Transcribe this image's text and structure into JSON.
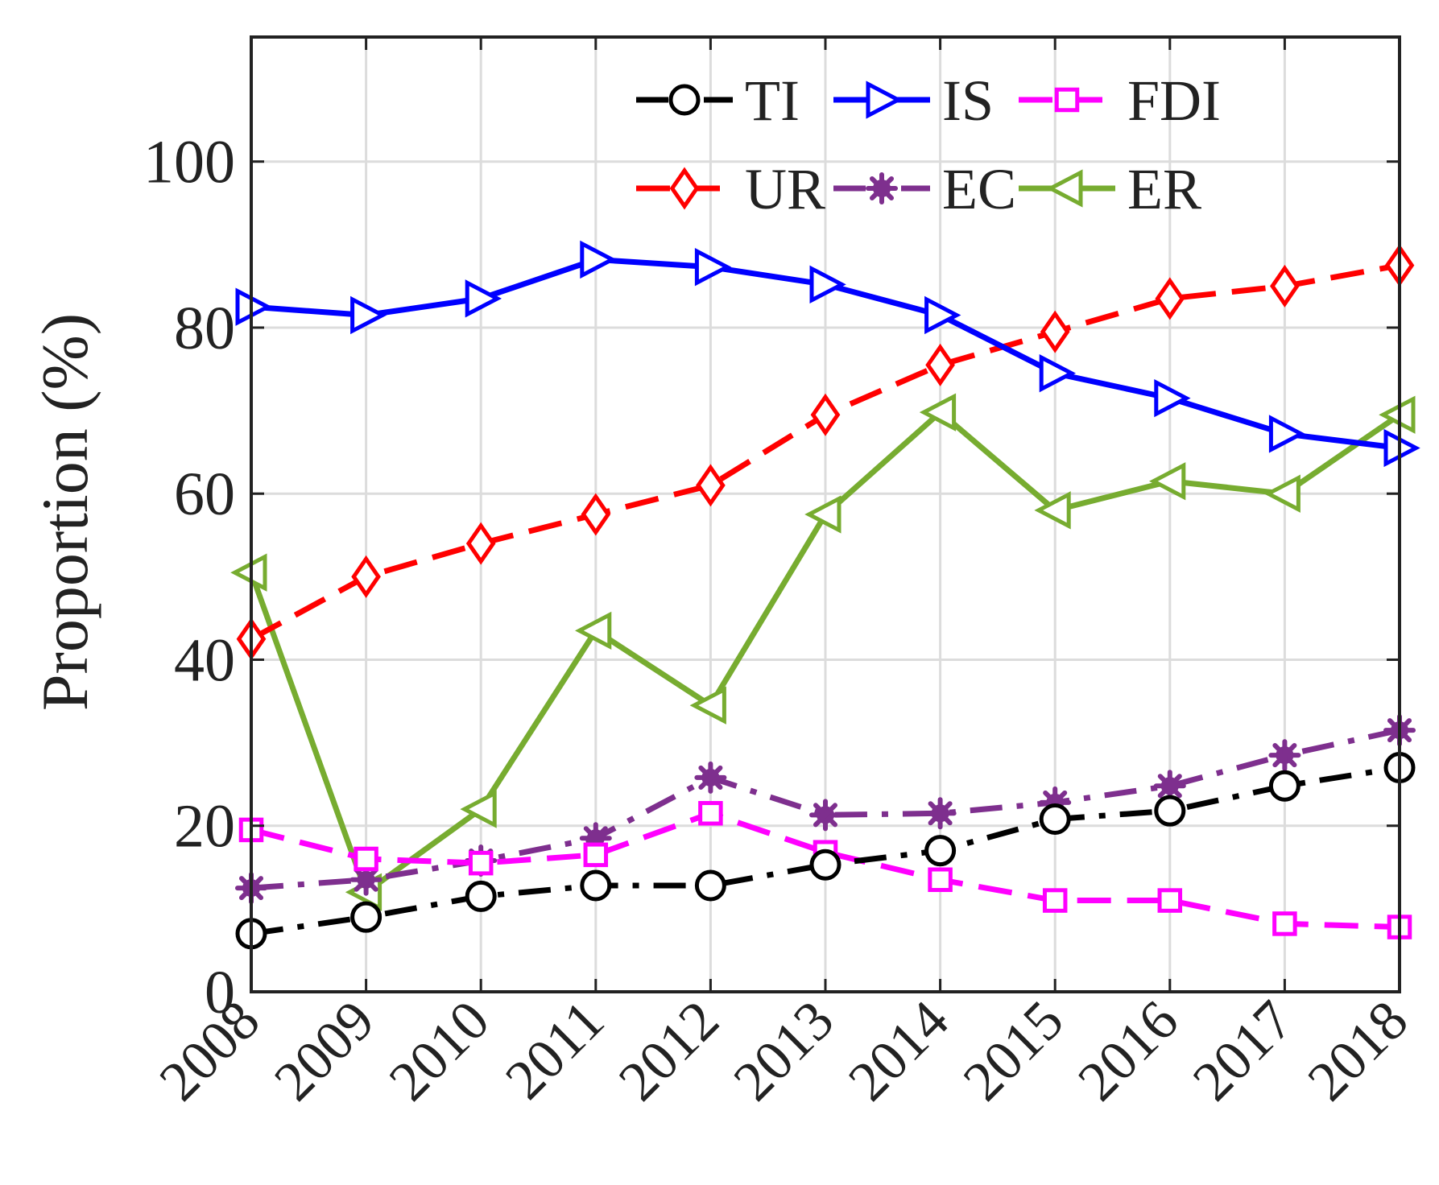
{
  "chart_data": {
    "type": "line",
    "title": "",
    "xlabel": "",
    "ylabel": "Proportion (%)",
    "x": [
      "2008",
      "2009",
      "2010",
      "2011",
      "2012",
      "2013",
      "2014",
      "2015",
      "2016",
      "2017",
      "2018"
    ],
    "ylim": [
      0,
      115
    ],
    "yticks": [
      0,
      20,
      40,
      60,
      80,
      100
    ],
    "grid": true,
    "legend": {
      "placement": "top-right",
      "columns": 3
    },
    "series": [
      {
        "name": "TI",
        "color": "#000000",
        "line": "dash-dot",
        "marker": "circle",
        "values": [
          7,
          9,
          11.5,
          12.8,
          12.8,
          15.3,
          17,
          20.8,
          21.8,
          24.8,
          27
        ]
      },
      {
        "name": "IS",
        "color": "#0000ff",
        "line": "solid",
        "marker": "triangle-right",
        "values": [
          82.5,
          81.5,
          83.5,
          88.2,
          87.3,
          85.2,
          81.5,
          74.5,
          71.5,
          67.2,
          65.5
        ]
      },
      {
        "name": "FDI",
        "color": "#ff00ff",
        "line": "dashed",
        "marker": "square",
        "values": [
          19.5,
          16,
          15.5,
          16.5,
          21.5,
          16.8,
          13.5,
          11,
          11,
          8.2,
          7.8
        ]
      },
      {
        "name": "UR",
        "color": "#ff0000",
        "line": "dashed",
        "marker": "diamond",
        "values": [
          42.5,
          50,
          54,
          57.5,
          61,
          69.5,
          75.5,
          79.5,
          83.5,
          85,
          87.5
        ]
      },
      {
        "name": "EC",
        "color": "#7e2f8e",
        "line": "dash-dot",
        "marker": "asterisk",
        "values": [
          12.5,
          13.5,
          15.8,
          18.5,
          25.8,
          21.3,
          21.5,
          22.8,
          24.8,
          28.5,
          31.5
        ]
      },
      {
        "name": "ER",
        "color": "#77ac30",
        "line": "solid",
        "marker": "triangle-left",
        "values": [
          50.5,
          12,
          22,
          43.5,
          34.5,
          57.5,
          69.8,
          58,
          61.5,
          60,
          69.5
        ]
      }
    ]
  }
}
